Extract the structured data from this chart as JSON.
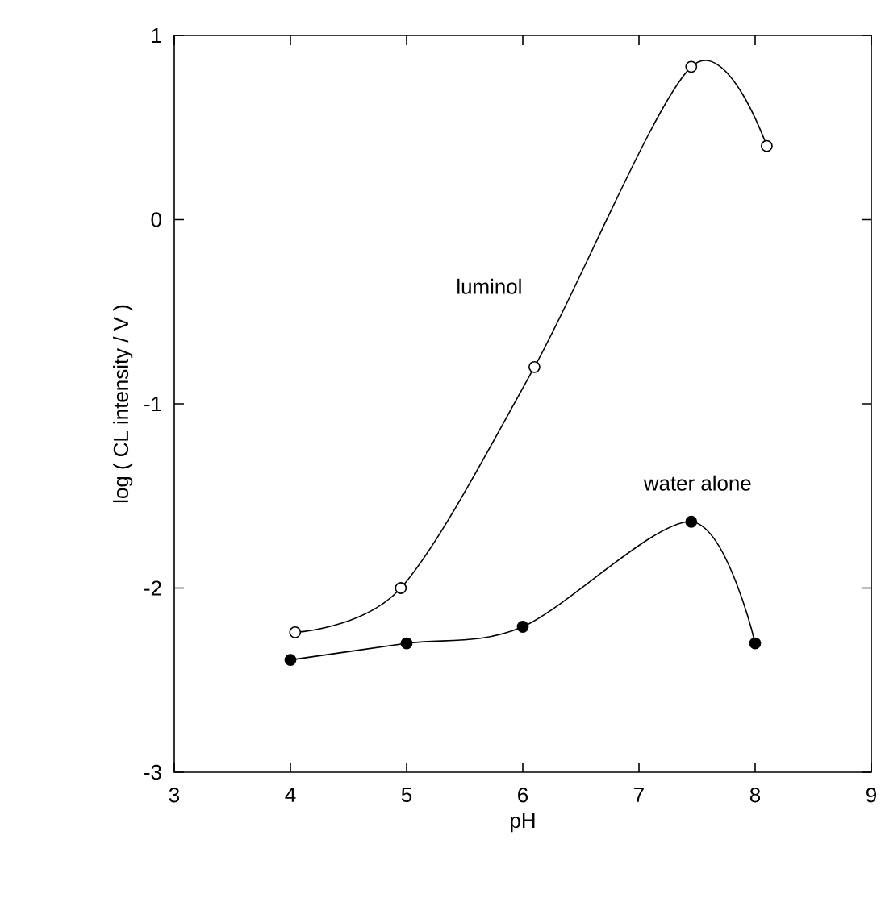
{
  "chart_data": {
    "type": "line",
    "xlabel": "pH",
    "ylabel": "log ( CL intensity / V )",
    "xlim": [
      3,
      9
    ],
    "ylim": [
      -3,
      1
    ],
    "xticks": [
      3,
      4,
      5,
      6,
      7,
      8,
      9
    ],
    "yticks": [
      -3,
      -2,
      -1,
      0,
      1
    ],
    "marker": "circle",
    "line_style": "solid",
    "grid": false,
    "legend": false,
    "series": [
      {
        "name": "luminol",
        "color": "#000000",
        "x": [
          4.04,
          4.95,
          6.1,
          7.45,
          8.1
        ],
        "values": [
          -2.24,
          -2.0,
          -0.8,
          0.83,
          0.4
        ]
      },
      {
        "name": "water alone",
        "color": "#000000",
        "x": [
          4.0,
          5.0,
          6.0,
          7.45,
          8.0
        ],
        "values": [
          -2.39,
          -2.3,
          -2.21,
          -1.64,
          -2.3
        ]
      }
    ]
  }
}
